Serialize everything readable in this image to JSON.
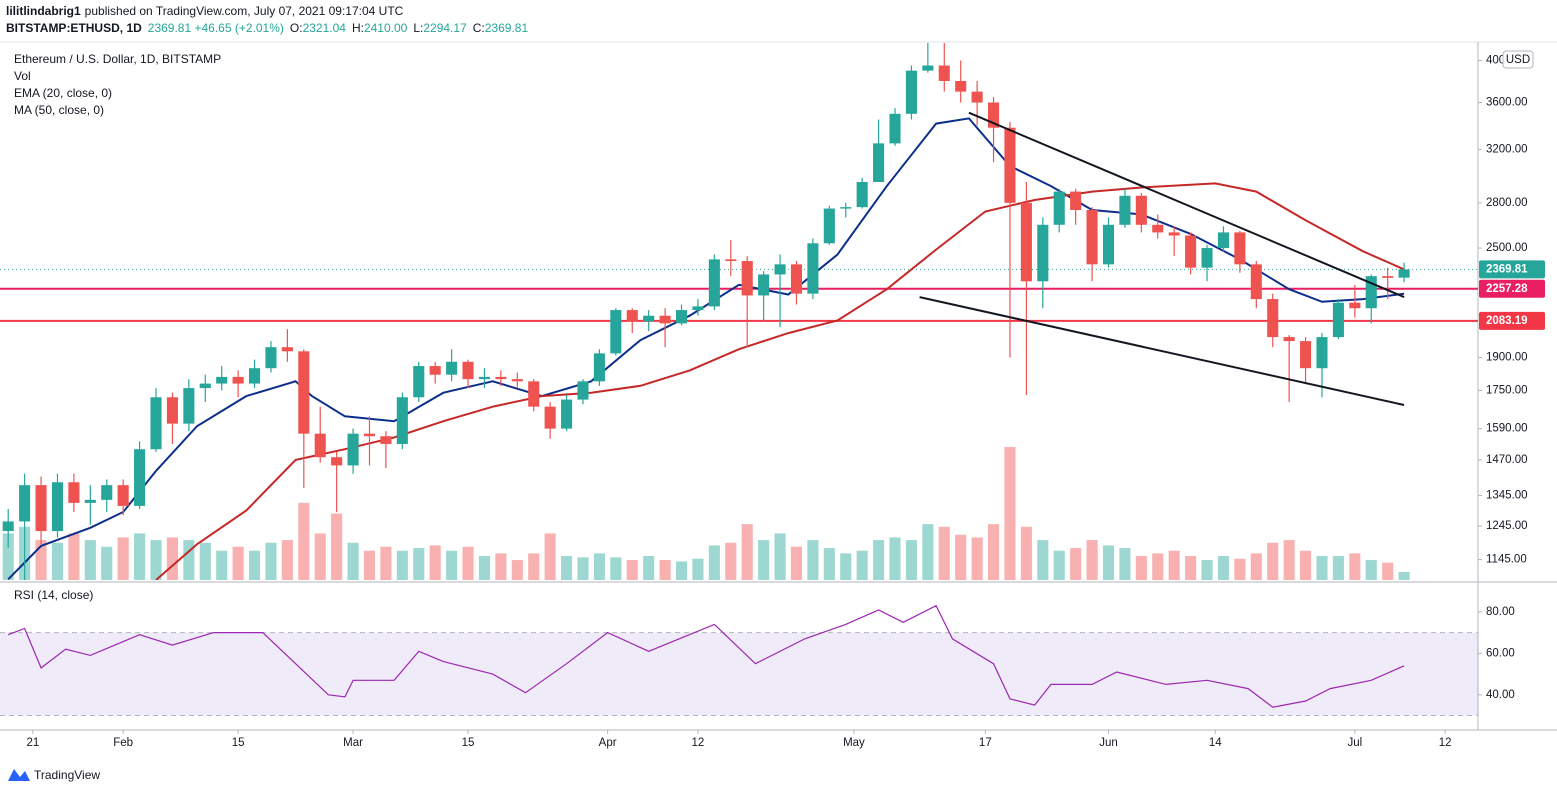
{
  "header": {
    "user": "lilitlindabrig1",
    "published": "published on TradingView.com, July 07, 2021 09:17:04 UTC",
    "symbol": "BITSTAMP:ETHUSD, 1D",
    "change": "2369.81 +46.65 (+2.01%)",
    "ohlc": [
      {
        "label": "O:",
        "value": "2321.04"
      },
      {
        "label": "H:",
        "value": "2410.00"
      },
      {
        "label": "L:",
        "value": "2294.17"
      },
      {
        "label": "C:",
        "value": "2369.81"
      }
    ]
  },
  "footer": {
    "brand": "TradingView"
  },
  "chart_data": {
    "type": "candlestick",
    "title": "Ethereum / U.S. Dollar, 1D, BITSTAMP",
    "currency": "USD",
    "scale": "log",
    "up_color": "#26a69a",
    "down_color": "#ef5350",
    "x": [
      "Jan 18",
      "Jan 20",
      "Jan 22",
      "Jan 24",
      "Jan 26",
      "Jan 28",
      "Jan 30",
      "Feb 1",
      "Feb 3",
      "Feb 5",
      "Feb 7",
      "Feb 9",
      "Feb 11",
      "Feb 13",
      "Feb 15",
      "Feb 17",
      "Feb 19",
      "Feb 21",
      "Feb 23",
      "Feb 25",
      "Feb 27",
      "Mar 1",
      "Mar 3",
      "Mar 5",
      "Mar 7",
      "Mar 9",
      "Mar 11",
      "Mar 13",
      "Mar 15",
      "Mar 17",
      "Mar 19",
      "Mar 21",
      "Mar 23",
      "Mar 25",
      "Mar 27",
      "Mar 29",
      "Mar 31",
      "Apr 2",
      "Apr 4",
      "Apr 6",
      "Apr 8",
      "Apr 10",
      "Apr 12",
      "Apr 14",
      "Apr 16",
      "Apr 18",
      "Apr 20",
      "Apr 22",
      "Apr 24",
      "Apr 26",
      "Apr 28",
      "Apr 30",
      "May 2",
      "May 4",
      "May 6",
      "May 8",
      "May 10",
      "May 12",
      "May 14",
      "May 16",
      "May 18",
      "May 20",
      "May 22",
      "May 24",
      "May 26",
      "May 28",
      "May 30",
      "Jun 1",
      "Jun 3",
      "Jun 5",
      "Jun 7",
      "Jun 9",
      "Jun 11",
      "Jun 13",
      "Jun 15",
      "Jun 17",
      "Jun 19",
      "Jun 21",
      "Jun 23",
      "Jun 25",
      "Jun 27",
      "Jun 29",
      "Jul 1",
      "Jul 3",
      "Jul 5",
      "Jul 7"
    ],
    "candles": [
      [
        1230,
        1300,
        1180,
        1260
      ],
      [
        1260,
        1420,
        1040,
        1380
      ],
      [
        1380,
        1410,
        1190,
        1230
      ],
      [
        1230,
        1420,
        1210,
        1390
      ],
      [
        1390,
        1420,
        1290,
        1320
      ],
      [
        1320,
        1380,
        1250,
        1330
      ],
      [
        1330,
        1400,
        1290,
        1380
      ],
      [
        1380,
        1400,
        1280,
        1310
      ],
      [
        1310,
        1540,
        1300,
        1510
      ],
      [
        1510,
        1760,
        1500,
        1720
      ],
      [
        1720,
        1740,
        1530,
        1610
      ],
      [
        1610,
        1800,
        1580,
        1760
      ],
      [
        1760,
        1820,
        1700,
        1780
      ],
      [
        1780,
        1860,
        1750,
        1810
      ],
      [
        1810,
        1840,
        1720,
        1780
      ],
      [
        1780,
        1890,
        1760,
        1850
      ],
      [
        1850,
        1980,
        1830,
        1950
      ],
      [
        1950,
        2040,
        1880,
        1930
      ],
      [
        1930,
        1940,
        1370,
        1570
      ],
      [
        1570,
        1680,
        1460,
        1480
      ],
      [
        1480,
        1500,
        1290,
        1450
      ],
      [
        1450,
        1590,
        1420,
        1570
      ],
      [
        1570,
        1640,
        1450,
        1560
      ],
      [
        1560,
        1580,
        1440,
        1530
      ],
      [
        1530,
        1740,
        1510,
        1720
      ],
      [
        1720,
        1880,
        1700,
        1860
      ],
      [
        1860,
        1880,
        1780,
        1820
      ],
      [
        1820,
        1940,
        1790,
        1880
      ],
      [
        1880,
        1890,
        1760,
        1800
      ],
      [
        1800,
        1850,
        1760,
        1810
      ],
      [
        1810,
        1840,
        1770,
        1800
      ],
      [
        1800,
        1830,
        1760,
        1790
      ],
      [
        1790,
        1800,
        1660,
        1680
      ],
      [
        1680,
        1700,
        1550,
        1590
      ],
      [
        1590,
        1730,
        1580,
        1710
      ],
      [
        1710,
        1800,
        1690,
        1790
      ],
      [
        1790,
        1940,
        1770,
        1920
      ],
      [
        1920,
        2150,
        1910,
        2140
      ],
      [
        2140,
        2150,
        2020,
        2080
      ],
      [
        2080,
        2140,
        2030,
        2110
      ],
      [
        2110,
        2150,
        1950,
        2070
      ],
      [
        2070,
        2170,
        2060,
        2140
      ],
      [
        2140,
        2200,
        2110,
        2160
      ],
      [
        2160,
        2460,
        2140,
        2430
      ],
      [
        2430,
        2550,
        2330,
        2420
      ],
      [
        2420,
        2450,
        1950,
        2220
      ],
      [
        2220,
        2360,
        2080,
        2340
      ],
      [
        2340,
        2460,
        2050,
        2400
      ],
      [
        2400,
        2420,
        2170,
        2230
      ],
      [
        2230,
        2560,
        2200,
        2530
      ],
      [
        2530,
        2780,
        2520,
        2760
      ],
      [
        2760,
        2800,
        2700,
        2770
      ],
      [
        2770,
        2980,
        2760,
        2950
      ],
      [
        2950,
        3450,
        2950,
        3250
      ],
      [
        3250,
        3550,
        3230,
        3500
      ],
      [
        3500,
        3950,
        3450,
        3900
      ],
      [
        3900,
        4180,
        3880,
        3950
      ],
      [
        3950,
        4180,
        3700,
        3800
      ],
      [
        3800,
        4000,
        3600,
        3700
      ],
      [
        3700,
        3800,
        3400,
        3600
      ],
      [
        3600,
        3650,
        3100,
        3380
      ],
      [
        3380,
        3430,
        1900,
        2800
      ],
      [
        2800,
        2950,
        1730,
        2300
      ],
      [
        2300,
        2700,
        2150,
        2650
      ],
      [
        2650,
        2900,
        2600,
        2880
      ],
      [
        2880,
        2900,
        2650,
        2750
      ],
      [
        2750,
        2770,
        2300,
        2400
      ],
      [
        2400,
        2700,
        2380,
        2650
      ],
      [
        2650,
        2900,
        2630,
        2850
      ],
      [
        2850,
        2870,
        2600,
        2650
      ],
      [
        2650,
        2720,
        2560,
        2600
      ],
      [
        2600,
        2640,
        2450,
        2580
      ],
      [
        2580,
        2600,
        2340,
        2380
      ],
      [
        2380,
        2520,
        2300,
        2500
      ],
      [
        2500,
        2640,
        2480,
        2600
      ],
      [
        2600,
        2610,
        2350,
        2400
      ],
      [
        2400,
        2420,
        2150,
        2200
      ],
      [
        2200,
        2230,
        1950,
        2000
      ],
      [
        2000,
        2010,
        1700,
        1980
      ],
      [
        1980,
        2000,
        1780,
        1850
      ],
      [
        1850,
        2020,
        1720,
        2000
      ],
      [
        2000,
        2200,
        1990,
        2180
      ],
      [
        2180,
        2280,
        2100,
        2150
      ],
      [
        2150,
        2340,
        2070,
        2330
      ],
      [
        2330,
        2380,
        2200,
        2320
      ],
      [
        2321.04,
        2410,
        2294.17,
        2369.81
      ]
    ],
    "xlim": [
      "Jan 17",
      "Jul 16"
    ],
    "xticks": [
      {
        "value": "Jan 21",
        "label": "21"
      },
      {
        "value": "Feb 1",
        "label": "Feb"
      },
      {
        "value": "Feb 15",
        "label": "15"
      },
      {
        "value": "Mar 1",
        "label": "Mar"
      },
      {
        "value": "Mar 15",
        "label": "15"
      },
      {
        "value": "Apr 1",
        "label": "Apr"
      },
      {
        "value": "Apr 12",
        "label": "12"
      },
      {
        "value": "May 1",
        "label": "May"
      },
      {
        "value": "May 17",
        "label": "17"
      },
      {
        "value": "Jun 1",
        "label": "Jun"
      },
      {
        "value": "Jun 14",
        "label": "14"
      },
      {
        "value": "Jul 1",
        "label": "Jul"
      },
      {
        "value": "Jul 12",
        "label": "12"
      }
    ],
    "ylim": [
      1088,
      4190
    ],
    "yticks": [
      {
        "value": 1145,
        "label": "1145.00"
      },
      {
        "value": 1245,
        "label": "1245.00"
      },
      {
        "value": 1345,
        "label": "1345.00"
      },
      {
        "value": 1470,
        "label": "1470.00"
      },
      {
        "value": 1590,
        "label": "1590.00"
      },
      {
        "value": 1750,
        "label": "1750.00"
      },
      {
        "value": 1900,
        "label": "1900.00"
      },
      {
        "value": 2500,
        "label": "2500.00"
      },
      {
        "value": 2800,
        "label": "2800.00"
      },
      {
        "value": 3200,
        "label": "3200.00"
      },
      {
        "value": 3600,
        "label": "3600.00"
      },
      {
        "value": 4000,
        "label": "4000.00"
      }
    ],
    "volume": {
      "name": "Vol",
      "values": [
        35,
        40,
        30,
        28,
        35,
        30,
        25,
        32,
        35,
        30,
        32,
        30,
        28,
        22,
        25,
        22,
        28,
        30,
        58,
        35,
        50,
        28,
        22,
        25,
        22,
        24,
        26,
        22,
        25,
        18,
        20,
        15,
        20,
        35,
        18,
        17,
        20,
        17,
        15,
        18,
        15,
        14,
        16,
        26,
        28,
        42,
        30,
        35,
        25,
        30,
        24,
        20,
        22,
        30,
        32,
        30,
        42,
        40,
        34,
        32,
        42,
        100,
        40,
        30,
        22,
        24,
        30,
        26,
        24,
        18,
        20,
        22,
        18,
        15,
        18,
        16,
        20,
        28,
        30,
        22,
        18,
        18,
        20,
        15,
        13,
        6
      ]
    },
    "series": [
      {
        "name": "EMA (20, close, 0)",
        "color": "#0d2f8c",
        "x": [
          "Jan 18",
          "Jan 22",
          "Jan 28",
          "Feb 1",
          "Feb 5",
          "Feb 10",
          "Feb 16",
          "Feb 22",
          "Feb 24",
          "Feb 28",
          "Mar 6",
          "Mar 12",
          "Mar 18",
          "Mar 24",
          "Mar 30",
          "Apr 5",
          "Apr 11",
          "Apr 17",
          "Apr 23",
          "Apr 29",
          "May 5",
          "May 11",
          "May 15",
          "May 20",
          "May 25",
          "May 30",
          "Jun 5",
          "Jun 11",
          "Jun 17",
          "Jun 23",
          "Jun 27",
          "Jul 2",
          "Jul 7"
        ],
        "values": [
          1090,
          1185,
          1240,
          1290,
          1430,
          1600,
          1725,
          1790,
          1725,
          1640,
          1620,
          1740,
          1790,
          1725,
          1790,
          1985,
          2110,
          2280,
          2225,
          2460,
          2920,
          3415,
          3460,
          3070,
          2920,
          2750,
          2720,
          2590,
          2430,
          2255,
          2185,
          2200,
          2230
        ]
      },
      {
        "name": "MA (50, close, 0)",
        "color": "#c62828",
        "x": [
          "Feb 5",
          "Feb 10",
          "Feb 16",
          "Feb 22",
          "Feb 28",
          "Mar 6",
          "Mar 12",
          "Mar 18",
          "Mar 24",
          "Mar 30",
          "Apr 5",
          "Apr 11",
          "Apr 17",
          "Apr 23",
          "Apr 29",
          "May 5",
          "May 11",
          "May 17",
          "May 23",
          "May 30",
          "Jun 5",
          "Jun 11",
          "Jun 14",
          "Jun 19",
          "Jun 25",
          "Jul 2",
          "Jul 7"
        ],
        "values": [
          1088,
          1190,
          1295,
          1470,
          1510,
          1555,
          1620,
          1680,
          1725,
          1740,
          1770,
          1840,
          1940,
          2020,
          2085,
          2255,
          2490,
          2740,
          2820,
          2880,
          2910,
          2930,
          2940,
          2880,
          2680,
          2480,
          2370
        ]
      }
    ],
    "trendlines": [
      {
        "color": "#131722",
        "x": [
          "May 15",
          "Jul 7"
        ],
        "values": [
          3510,
          2211
        ]
      },
      {
        "color": "#131722",
        "x": [
          "May 9",
          "Jul 7"
        ],
        "values": [
          2211,
          1687
        ]
      }
    ],
    "levels": [
      {
        "value": 2257.28,
        "color": "#e91e63"
      },
      {
        "value": 2083.19,
        "color": "#f23645"
      }
    ],
    "last_price": {
      "value": 2369.81,
      "color": "#26a69a"
    },
    "rsi": {
      "name": "RSI (14, close)",
      "color": "#9c27b0",
      "band_color": "#7e57c2",
      "x": [
        "Jan 18",
        "Jan 20",
        "Jan 22",
        "Jan 25",
        "Jan 28",
        "Feb 3",
        "Feb 7",
        "Feb 12",
        "Feb 18",
        "Feb 22",
        "Feb 26",
        "Feb 28",
        "Mar 1",
        "Mar 6",
        "Mar 9",
        "Mar 12",
        "Mar 18",
        "Mar 22",
        "Mar 27",
        "Apr 1",
        "Apr 6",
        "Apr 14",
        "Apr 19",
        "Apr 25",
        "Apr 30",
        "May 4",
        "May 7",
        "May 11",
        "May 13",
        "May 18",
        "May 20",
        "May 23",
        "May 25",
        "May 30",
        "Jun 2",
        "Jun 8",
        "Jun 13",
        "Jun 18",
        "Jun 21",
        "Jun 25",
        "Jun 28",
        "Jul 3",
        "Jul 7"
      ],
      "values": [
        69,
        72,
        53,
        62,
        59,
        69,
        64,
        70,
        70,
        55,
        40,
        39,
        47,
        47,
        61,
        56,
        50,
        41,
        55,
        70,
        61,
        74,
        55,
        67,
        74,
        81,
        75,
        83,
        67,
        55,
        38,
        35,
        45,
        45,
        51,
        45,
        47,
        43,
        34,
        37,
        43,
        47,
        54
      ],
      "ylim": [
        23,
        93
      ],
      "bands": [
        30,
        70
      ],
      "yticks": [
        {
          "value": 80,
          "label": "80.00"
        },
        {
          "value": 60,
          "label": "60.00"
        },
        {
          "value": 40,
          "label": "40.00"
        }
      ]
    }
  }
}
